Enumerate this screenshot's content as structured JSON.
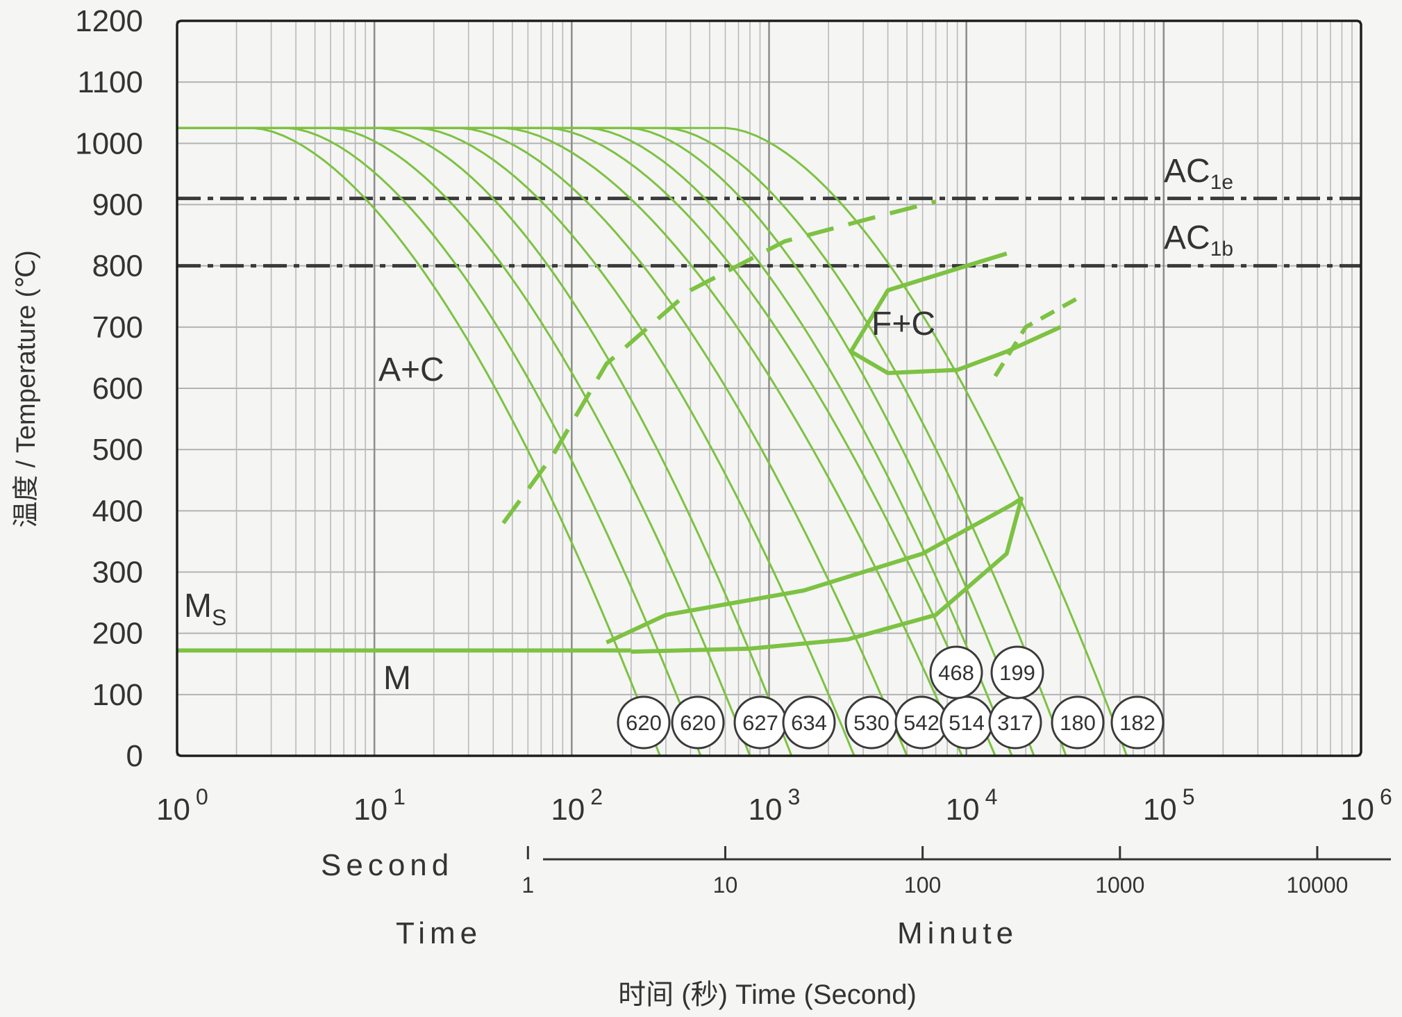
{
  "chart_data": {
    "type": "line",
    "xscale": "log",
    "xlim": [
      1,
      1000000
    ],
    "ylim": [
      0,
      1200
    ],
    "y_ticks": [
      0,
      100,
      200,
      300,
      400,
      500,
      600,
      700,
      800,
      900,
      1000,
      1100,
      1200
    ],
    "x_tick_labels": [
      {
        "base": "10",
        "exp": "0"
      },
      {
        "base": "10",
        "exp": "1"
      },
      {
        "base": "10",
        "exp": "2"
      },
      {
        "base": "10",
        "exp": "3"
      },
      {
        "base": "10",
        "exp": "4"
      },
      {
        "base": "10",
        "exp": "5"
      },
      {
        "base": "10",
        "exp": "6"
      }
    ],
    "ylabel": "温度 / Temperature (℃)",
    "xlabel": "时间 (秒)  Time (Second)",
    "unit_labels": {
      "second": "Second",
      "time": "Time",
      "minute": "Minute"
    },
    "minute_ticks": [
      "1",
      "10",
      "100",
      "1000",
      "10000"
    ],
    "grid": true,
    "reference_lines": [
      {
        "label": "AC",
        "sub": "1e",
        "y": 910
      },
      {
        "label": "AC",
        "sub": "1b",
        "y": 800
      }
    ],
    "region_labels": {
      "a_c": "A+C",
      "f_c": "F+C",
      "m": "M",
      "ms": "M",
      "ms_sub": "S"
    },
    "ms_temperature": 172,
    "start_temperature": 1025,
    "cooling_curves": [
      {
        "t_start": 8,
        "t_end": 280,
        "hardness": "620"
      },
      {
        "t_start": 12,
        "t_end": 450,
        "hardness": "620"
      },
      {
        "t_start": 20,
        "t_end": 800,
        "hardness": "627"
      },
      {
        "t_start": 35,
        "t_end": 1300,
        "hardness": "634"
      },
      {
        "t_start": 55,
        "t_end": 2700,
        "hardness": "530"
      },
      {
        "t_start": 90,
        "t_end": 5000,
        "hardness": "542"
      },
      {
        "t_start": 150,
        "t_end": 9500,
        "hardness": "514"
      },
      {
        "t_start": 250,
        "t_end": 14000,
        "hardness": "317"
      },
      {
        "t_start": 400,
        "t_end": 17000,
        "hardness": "468"
      },
      {
        "t_start": 650,
        "t_end": 22000,
        "hardness": "199"
      },
      {
        "t_start": 1000,
        "t_end": 32000,
        "hardness": "180"
      },
      {
        "t_start": 2000,
        "t_end": 65000,
        "hardness": "182"
      }
    ],
    "hardness_row_lower": [
      "620",
      "620",
      "627",
      "634",
      "530",
      "542",
      "514",
      "317",
      "180",
      "182"
    ],
    "hardness_row_upper": [
      "468",
      "199"
    ],
    "carbide_precipitation_line": [
      [
        45,
        380
      ],
      [
        80,
        490
      ],
      [
        150,
        640
      ],
      [
        400,
        760
      ],
      [
        1200,
        840
      ],
      [
        3500,
        880
      ],
      [
        7000,
        905
      ]
    ],
    "f_c_region_outline": [
      [
        16000,
        820
      ],
      [
        10000,
        800
      ],
      [
        4000,
        760
      ],
      [
        2600,
        660
      ],
      [
        4000,
        625
      ],
      [
        9000,
        630
      ],
      [
        16000,
        660
      ],
      [
        30000,
        700
      ]
    ],
    "f_c_finish_dashed": [
      [
        14000,
        620
      ],
      [
        20000,
        700
      ],
      [
        38000,
        750
      ]
    ],
    "bainite_region_outline": [
      [
        150,
        185
      ],
      [
        300,
        230
      ],
      [
        1500,
        270
      ],
      [
        6000,
        330
      ],
      [
        17000,
        410
      ],
      [
        19000,
        420
      ],
      [
        16000,
        330
      ],
      [
        7000,
        230
      ],
      [
        2500,
        190
      ],
      [
        800,
        175
      ],
      [
        200,
        170
      ]
    ]
  }
}
